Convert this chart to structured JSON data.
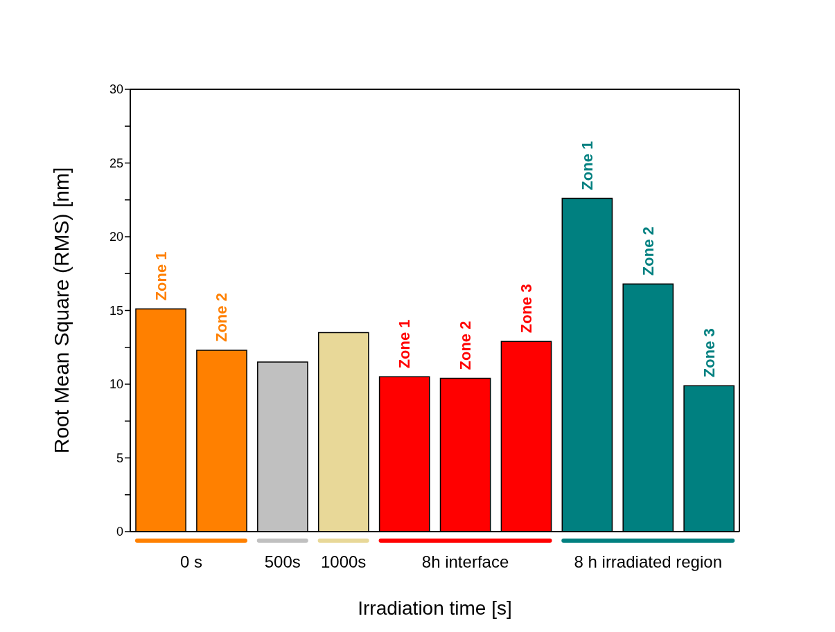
{
  "chart_data": {
    "type": "bar",
    "xlabel": "Irradiation time [s]",
    "ylabel": "Root Mean Square (RMS) [nm]",
    "categories": [
      "Zone 1",
      "Zone 2",
      null,
      null,
      "Zone 1",
      "Zone 2",
      "Zone 3",
      "Zone 1",
      "Zone 2",
      "Zone 3"
    ],
    "values": [
      15.1,
      12.3,
      11.5,
      13.5,
      10.5,
      10.4,
      12.9,
      22.6,
      16.8,
      9.9
    ],
    "colors": [
      "#ff8000",
      "#ff8000",
      "#c0c0c0",
      "#e8d898",
      "#ff0000",
      "#ff0000",
      "#ff0000",
      "#008080",
      "#008080",
      "#008080"
    ],
    "ylim": [
      0,
      30
    ],
    "yticks": [
      0,
      {
        "value": 2.5,
        "label": null
      },
      5,
      {
        "value": 7.5,
        "label": null
      },
      10,
      {
        "value": 12.5,
        "label": null
      },
      15,
      {
        "value": 17.5,
        "label": null
      },
      20,
      {
        "value": 22.5,
        "label": null
      },
      25,
      {
        "value": 27.5,
        "label": null
      },
      30
    ],
    "annotations": [
      "0 s",
      "500s",
      "1000s",
      "8h interface",
      "8 h irradiated region"
    ]
  }
}
